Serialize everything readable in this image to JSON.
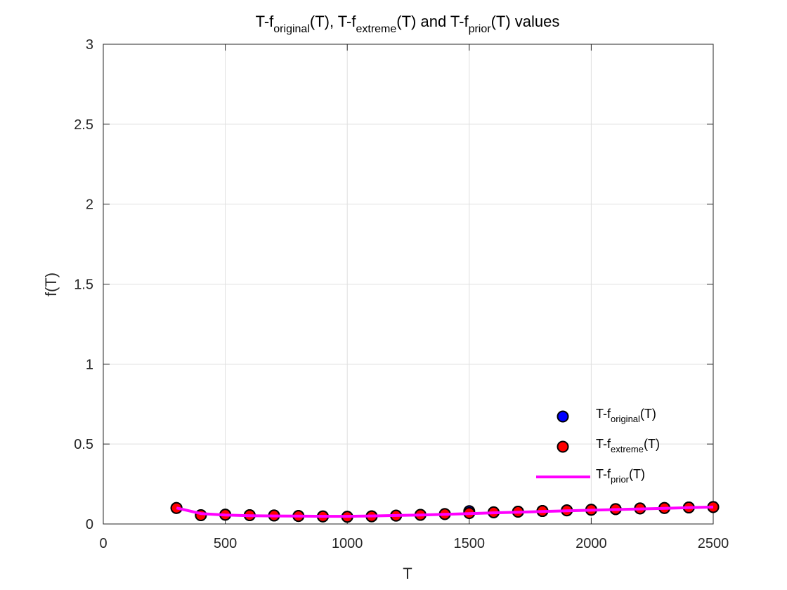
{
  "chart_data": {
    "type": "scatter",
    "title": {
      "parts": [
        {
          "text": "T-f",
          "sub": false
        },
        {
          "text": "original",
          "sub": true
        },
        {
          "text": "(T), T-f",
          "sub": false
        },
        {
          "text": "extreme",
          "sub": true
        },
        {
          "text": "(T) and T-f",
          "sub": false
        },
        {
          "text": "prior",
          "sub": true
        },
        {
          "text": "(T) values",
          "sub": false
        }
      ]
    },
    "xlabel": "T",
    "ylabel": "f(T)",
    "xlim": [
      0,
      2500
    ],
    "ylim": [
      0,
      3
    ],
    "xticks": [
      0,
      500,
      1000,
      1500,
      2000,
      2500
    ],
    "xtick_labels": [
      "0",
      "500",
      "1000",
      "1500",
      "2000",
      "2500"
    ],
    "yticks": [
      0,
      0.5,
      1,
      1.5,
      2,
      2.5,
      3
    ],
    "ytick_labels": [
      "0",
      "0.5",
      "1",
      "1.5",
      "2",
      "2.5",
      "3"
    ],
    "grid": true,
    "legend_position": "bottom-right",
    "series": [
      {
        "key": "original",
        "kind": "markers",
        "color": "#0000ff",
        "legend": [
          {
            "text": "T-f",
            "sub": false
          },
          {
            "text": "original",
            "sub": true
          },
          {
            "text": "(T)",
            "sub": false
          }
        ],
        "x": [
          300,
          400,
          500,
          600,
          700,
          800,
          900,
          1000,
          1100,
          1200,
          1300,
          1400,
          1500,
          1600,
          1700,
          1800,
          1900,
          2000,
          2100,
          2200,
          2300,
          2400,
          2500
        ],
        "y": [
          0.1,
          0.055,
          0.058,
          0.055,
          0.053,
          0.05,
          0.047,
          0.045,
          0.048,
          0.052,
          0.057,
          0.062,
          0.08,
          0.073,
          0.077,
          0.081,
          0.085,
          0.089,
          0.093,
          0.097,
          0.1,
          0.103,
          0.106
        ]
      },
      {
        "key": "extreme",
        "kind": "markers",
        "color": "#ff0000",
        "legend": [
          {
            "text": "T-f",
            "sub": false
          },
          {
            "text": "extreme",
            "sub": true
          },
          {
            "text": "(T)",
            "sub": false
          }
        ],
        "x": [
          300,
          400,
          500,
          600,
          700,
          800,
          900,
          1000,
          1100,
          1200,
          1300,
          1400,
          1500,
          1600,
          1700,
          1800,
          1900,
          2000,
          2100,
          2200,
          2300,
          2400,
          2500
        ],
        "y": [
          0.1,
          0.055,
          0.058,
          0.055,
          0.053,
          0.05,
          0.047,
          0.045,
          0.048,
          0.052,
          0.057,
          0.062,
          0.068,
          0.073,
          0.077,
          0.081,
          0.085,
          0.089,
          0.093,
          0.097,
          0.1,
          0.103,
          0.106
        ]
      },
      {
        "key": "prior",
        "kind": "line",
        "color": "#ff00ff",
        "legend": [
          {
            "text": "T-f",
            "sub": false
          },
          {
            "text": "prior",
            "sub": true
          },
          {
            "text": "(T)",
            "sub": false
          }
        ],
        "x": [
          300,
          400,
          500,
          600,
          700,
          800,
          900,
          1000,
          1100,
          1200,
          1300,
          1400,
          1500,
          1600,
          1700,
          1800,
          1900,
          2000,
          2100,
          2200,
          2300,
          2400,
          2500
        ],
        "y": [
          0.1,
          0.065,
          0.056,
          0.052,
          0.05,
          0.049,
          0.048,
          0.048,
          0.05,
          0.053,
          0.056,
          0.06,
          0.065,
          0.07,
          0.074,
          0.078,
          0.082,
          0.086,
          0.09,
          0.094,
          0.098,
          0.102,
          0.106
        ]
      }
    ]
  }
}
